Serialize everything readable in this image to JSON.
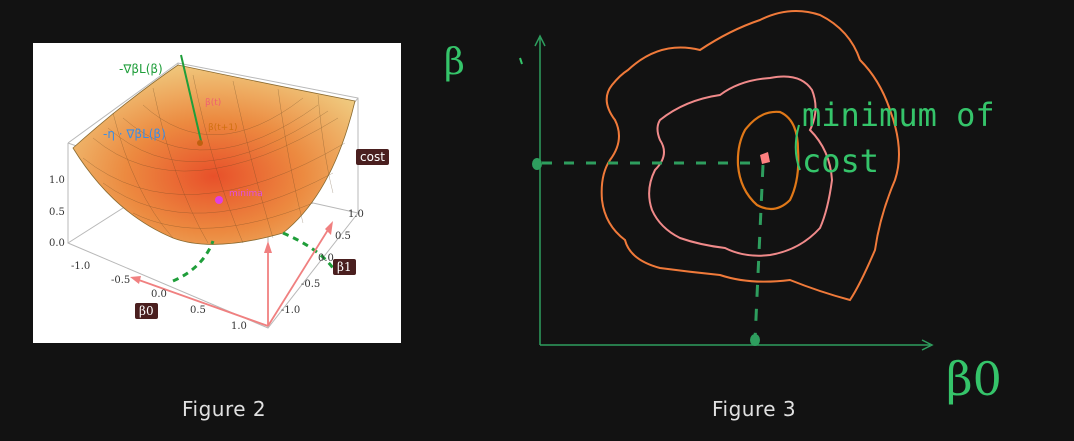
{
  "figure2": {
    "caption": "Figure 2",
    "surface_labels": {
      "neg_gradient": "-∇βL(β)",
      "step": "-η · ∇βL(β)",
      "beta_t": "β(t)",
      "beta_t1": "β(t+1)",
      "minima": "minima"
    },
    "tags": {
      "cost": "cost",
      "beta0": "β0",
      "beta1": "β1"
    },
    "z_ticks": [
      "1.0",
      "0.5",
      "0.0"
    ],
    "beta0_ticks": [
      "-1.0",
      "-0.5",
      "0.0",
      "0.5",
      "1.0"
    ],
    "beta1_ticks": [
      "1.0",
      "0.5",
      "0.0",
      "-0.5",
      "-1.0"
    ],
    "colors": {
      "surface_top": "#f0d070",
      "surface_low": "#e8502a",
      "arrow_green": "#1f9e3a",
      "arrow_blue": "#3a8ee6",
      "dashed_green": "#1f9e3a",
      "axis_pink": "#f08080"
    }
  },
  "figure3": {
    "caption": "Figure 3",
    "y_axis_label": "β",
    "x_axis_label": "β0",
    "annotation": "minimum of cost",
    "annotation_line1": "minimum of",
    "annotation_line2": "cost",
    "colors": {
      "axis": "#2e9e5e",
      "outer_contour": "#f07a3a",
      "middle_contour": "#f08a8a",
      "inner_contour": "#e07818",
      "minimum": "#ff8080",
      "annotation": "#35c46a",
      "dashed": "#2e9e5e"
    }
  }
}
